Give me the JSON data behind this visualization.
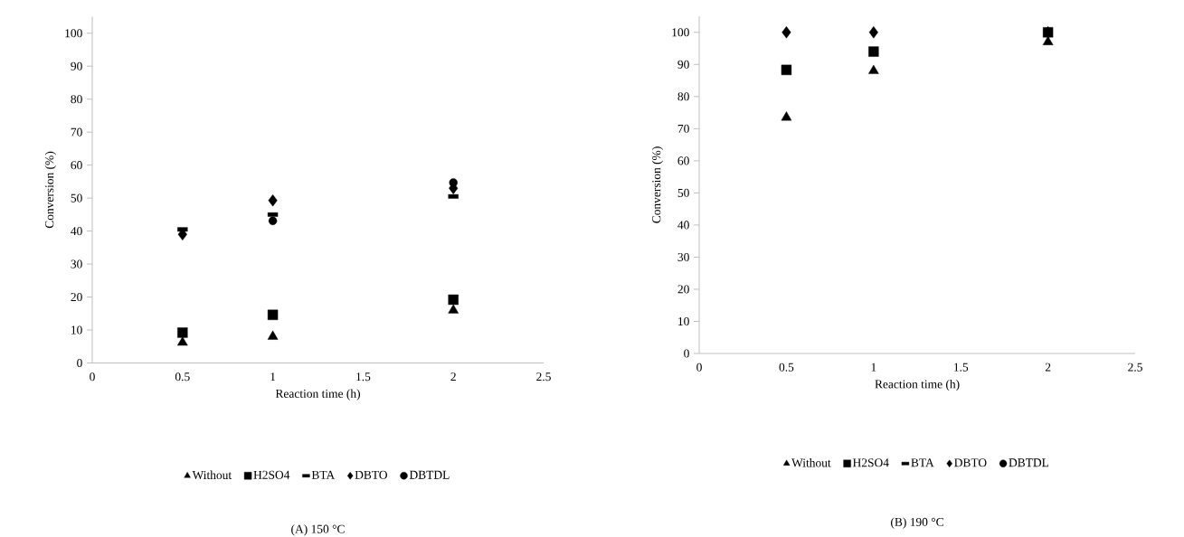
{
  "chart_data": [
    {
      "type": "scatter",
      "title": "(A) 150 °C",
      "xlabel": "Reaction time (h)",
      "ylabel": "Conversion (%)",
      "x": [
        0.5,
        1,
        2
      ],
      "xlim": [
        0,
        2.5
      ],
      "xticks": [
        0,
        0.5,
        1,
        1.5,
        2,
        2.5
      ],
      "ylim": [
        0,
        105
      ],
      "yticks": [
        0,
        10,
        20,
        30,
        40,
        50,
        60,
        70,
        80,
        90,
        100
      ],
      "legend": "bottom",
      "grid": false,
      "series": [
        {
          "name": "Without",
          "color": "#000000",
          "marker": "triangle",
          "values": [
            6.2,
            8,
            16
          ]
        },
        {
          "name": "H2SO4",
          "color": "#000000",
          "marker": "square",
          "values": [
            9.2,
            14.6,
            19.2
          ]
        },
        {
          "name": "BTA",
          "color": "#000000",
          "values": [
            40.5,
            45,
            50.5
          ]
        },
        {
          "name": "DBTO",
          "color": "#000000",
          "marker": "diamond",
          "values": [
            39,
            49.3,
            53
          ]
        },
        {
          "name": "DBTDL",
          "color": "#000000",
          "marker": "circle",
          "values": [
            null,
            43.1,
            54.7
          ]
        }
      ]
    },
    {
      "type": "scatter",
      "title": "(B) 190 °C",
      "xlabel": "Reaction time (h)",
      "ylabel": "Conversion (%)",
      "x": [
        0.5,
        1,
        2
      ],
      "xlim": [
        0,
        2.5
      ],
      "xticks": [
        0,
        0.5,
        1,
        1.5,
        2,
        2.5
      ],
      "ylim": [
        0,
        105
      ],
      "yticks": [
        0,
        10,
        20,
        30,
        40,
        50,
        60,
        70,
        80,
        90,
        100
      ],
      "legend": "bottom",
      "grid": false,
      "series": [
        {
          "name": "Without",
          "color": "#000000",
          "marker": "triangle",
          "values": [
            73.5,
            88,
            97
          ]
        },
        {
          "name": "H2SO4",
          "color": "#000000",
          "marker": "square",
          "values": [
            88.3,
            94,
            100
          ]
        },
        {
          "name": "BTA",
          "color": "#000000",
          "values": [
            null,
            null,
            null
          ]
        },
        {
          "name": "DBTO",
          "color": "#000000",
          "marker": "diamond",
          "values": [
            100,
            100,
            100
          ]
        },
        {
          "name": "DBTDL",
          "color": "#000000",
          "marker": "circle",
          "values": [
            null,
            null,
            null
          ]
        }
      ]
    }
  ]
}
